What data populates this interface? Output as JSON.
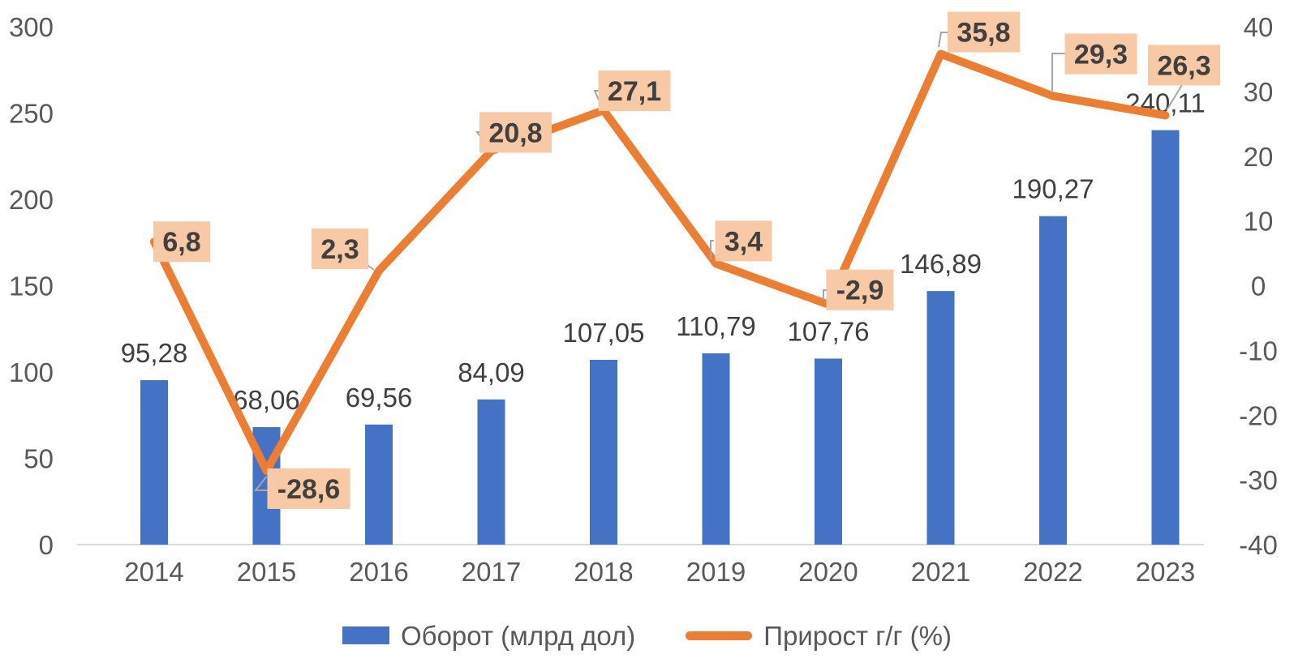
{
  "chart_data": {
    "type": "combo-bar-line",
    "categories": [
      "2014",
      "2015",
      "2016",
      "2017",
      "2018",
      "2019",
      "2020",
      "2021",
      "2022",
      "2023"
    ],
    "series": [
      {
        "name": "Оборот (млрд дол)",
        "type": "bar",
        "axis": "left",
        "values": [
          95.28,
          68.06,
          69.56,
          84.09,
          107.05,
          110.79,
          107.76,
          146.89,
          190.27,
          240.11
        ],
        "labels": [
          "95,28",
          "68,06",
          "69,56",
          "84,09",
          "107,05",
          "110,79",
          "107,76",
          "146,89",
          "190,27",
          "240,11"
        ]
      },
      {
        "name": "Прирост г/г (%)",
        "type": "line",
        "axis": "right",
        "values": [
          6.8,
          -28.6,
          2.3,
          20.8,
          27.1,
          3.4,
          -2.9,
          35.8,
          29.3,
          26.3
        ],
        "labels": [
          "6,8",
          "-28,6",
          "2,3",
          "20,8",
          "27,1",
          "3,4",
          "-2,9",
          "35,8",
          "29,3",
          "26,3"
        ]
      }
    ],
    "left_axis": {
      "min": 0,
      "max": 300,
      "step": 50,
      "tick_labels": [
        "300",
        "250",
        "200",
        "150",
        "100",
        "50",
        "0"
      ]
    },
    "right_axis": {
      "min": -40,
      "max": 40,
      "step": 10,
      "tick_labels": [
        "40",
        "30",
        "20",
        "10",
        "0",
        "-10",
        "-20",
        "-30",
        "-40"
      ]
    },
    "legend_position": "bottom",
    "grid": false,
    "title": ""
  },
  "legend": {
    "bar_label": "Оборот (млрд дол)",
    "line_label": "Прирост г/г (%)"
  },
  "colors": {
    "bar": "#4472C4",
    "line": "#ED7D31",
    "callout_bg": "#F7C9A4",
    "callout_text": "#404040",
    "data_label_text": "#404040",
    "axis_text": "#595959",
    "axis_line": "#D9D9D9",
    "leader": "#A6A6A6",
    "background": "#FFFFFF"
  }
}
